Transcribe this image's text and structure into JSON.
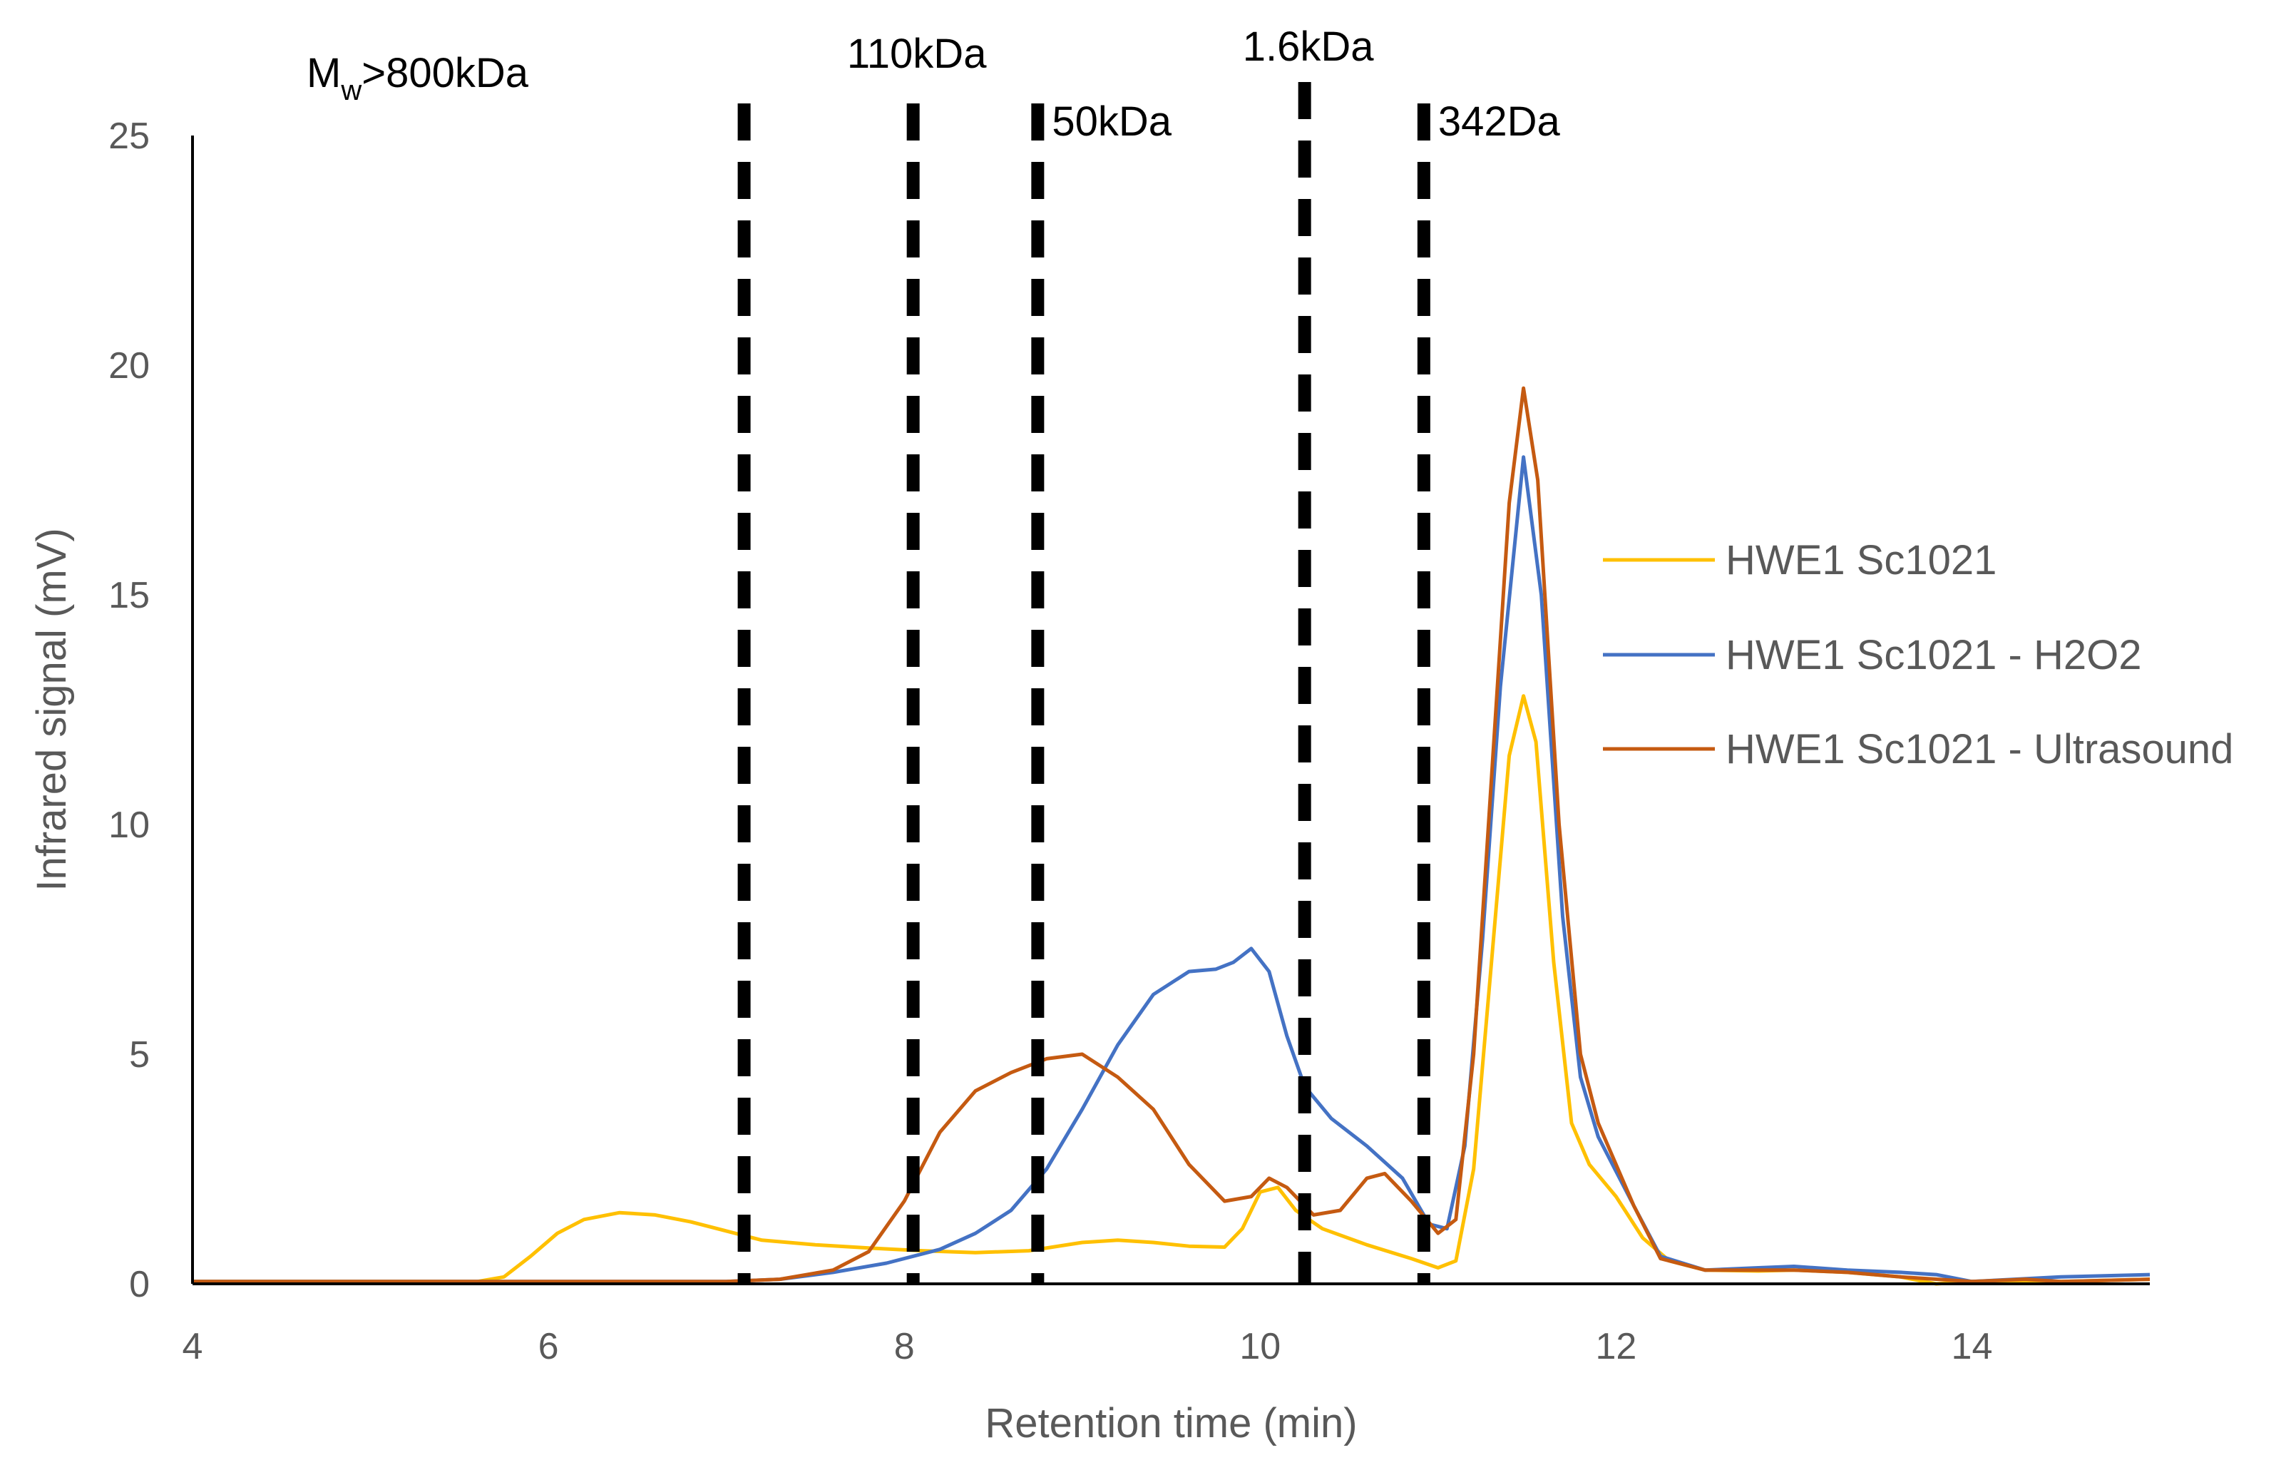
{
  "chart_data": {
    "type": "line",
    "title": "",
    "xlabel": "Retention time (min)",
    "ylabel": "Infrared signal (mV)",
    "xlim": [
      4,
      15
    ],
    "ylim": [
      0,
      25
    ],
    "xticks": [
      "4",
      "6",
      "8",
      "10",
      "12",
      "14"
    ],
    "yticks": [
      "0",
      "5",
      "10",
      "15",
      "20",
      "25"
    ],
    "grid": false,
    "legend_position": "right",
    "markers": [
      {
        "x": 7.1,
        "label": "",
        "label_x": 6.2
      },
      {
        "x": 8.05,
        "label": "110kDa"
      },
      {
        "x": 8.75,
        "label": "50kDa"
      },
      {
        "x": 10.25,
        "label": "1.6kDa"
      },
      {
        "x": 10.92,
        "label": "342Da"
      }
    ],
    "mw_label": {
      "main": "M",
      "sub": "w",
      "rest": ">800kDa"
    },
    "series": [
      {
        "name": "HWE1 Sc1021",
        "color": "#FFC000",
        "points": [
          [
            4,
            0.05
          ],
          [
            5,
            0.05
          ],
          [
            5.6,
            0.05
          ],
          [
            5.75,
            0.15
          ],
          [
            5.9,
            0.6
          ],
          [
            6.05,
            1.1
          ],
          [
            6.2,
            1.4
          ],
          [
            6.4,
            1.55
          ],
          [
            6.6,
            1.5
          ],
          [
            6.8,
            1.35
          ],
          [
            7.0,
            1.15
          ],
          [
            7.2,
            0.95
          ],
          [
            7.5,
            0.85
          ],
          [
            7.8,
            0.78
          ],
          [
            8.1,
            0.72
          ],
          [
            8.4,
            0.68
          ],
          [
            8.7,
            0.72
          ],
          [
            9.0,
            0.9
          ],
          [
            9.2,
            0.95
          ],
          [
            9.4,
            0.9
          ],
          [
            9.6,
            0.82
          ],
          [
            9.8,
            0.8
          ],
          [
            9.9,
            1.2
          ],
          [
            10.0,
            2.0
          ],
          [
            10.1,
            2.1
          ],
          [
            10.2,
            1.6
          ],
          [
            10.35,
            1.2
          ],
          [
            10.6,
            0.85
          ],
          [
            10.85,
            0.55
          ],
          [
            11.0,
            0.35
          ],
          [
            11.1,
            0.5
          ],
          [
            11.2,
            2.5
          ],
          [
            11.3,
            7.0
          ],
          [
            11.4,
            11.5
          ],
          [
            11.48,
            12.8
          ],
          [
            11.55,
            11.8
          ],
          [
            11.65,
            7.0
          ],
          [
            11.75,
            3.5
          ],
          [
            11.85,
            2.6
          ],
          [
            12.0,
            1.9
          ],
          [
            12.15,
            1.0
          ],
          [
            12.3,
            0.5
          ],
          [
            12.5,
            0.3
          ],
          [
            12.8,
            0.28
          ],
          [
            13.0,
            0.3
          ],
          [
            13.3,
            0.25
          ],
          [
            13.6,
            0.15
          ],
          [
            13.8,
            0.0
          ],
          [
            14.0,
            0.05
          ],
          [
            14.5,
            0.05
          ],
          [
            15,
            0.1
          ]
        ]
      },
      {
        "name": "HWE1 Sc1021 - H2O2",
        "color": "#4472C4",
        "points": [
          [
            4,
            0.05
          ],
          [
            6,
            0.05
          ],
          [
            7,
            0.05
          ],
          [
            7.3,
            0.1
          ],
          [
            7.6,
            0.25
          ],
          [
            7.9,
            0.45
          ],
          [
            8.2,
            0.75
          ],
          [
            8.4,
            1.1
          ],
          [
            8.6,
            1.6
          ],
          [
            8.8,
            2.5
          ],
          [
            9.0,
            3.8
          ],
          [
            9.2,
            5.2
          ],
          [
            9.4,
            6.3
          ],
          [
            9.6,
            6.8
          ],
          [
            9.75,
            6.85
          ],
          [
            9.85,
            7.0
          ],
          [
            9.95,
            7.3
          ],
          [
            10.05,
            6.8
          ],
          [
            10.15,
            5.4
          ],
          [
            10.25,
            4.3
          ],
          [
            10.4,
            3.6
          ],
          [
            10.6,
            3.0
          ],
          [
            10.8,
            2.3
          ],
          [
            10.95,
            1.3
          ],
          [
            11.05,
            1.2
          ],
          [
            11.15,
            3.0
          ],
          [
            11.25,
            7.5
          ],
          [
            11.35,
            13.0
          ],
          [
            11.48,
            18.0
          ],
          [
            11.58,
            15.0
          ],
          [
            11.7,
            8.0
          ],
          [
            11.8,
            4.5
          ],
          [
            11.9,
            3.2
          ],
          [
            12.1,
            1.7
          ],
          [
            12.25,
            0.6
          ],
          [
            12.5,
            0.3
          ],
          [
            12.8,
            0.35
          ],
          [
            13.0,
            0.38
          ],
          [
            13.3,
            0.3
          ],
          [
            13.6,
            0.25
          ],
          [
            13.8,
            0.2
          ],
          [
            14.0,
            0.05
          ],
          [
            14.5,
            0.15
          ],
          [
            15,
            0.2
          ]
        ]
      },
      {
        "name": "HWE1 Sc1021 - Ultrasound",
        "color": "#C55A11",
        "points": [
          [
            4,
            0.05
          ],
          [
            6,
            0.05
          ],
          [
            7,
            0.05
          ],
          [
            7.3,
            0.1
          ],
          [
            7.6,
            0.3
          ],
          [
            7.8,
            0.7
          ],
          [
            8.0,
            1.8
          ],
          [
            8.2,
            3.3
          ],
          [
            8.4,
            4.2
          ],
          [
            8.6,
            4.6
          ],
          [
            8.8,
            4.9
          ],
          [
            9.0,
            5.0
          ],
          [
            9.2,
            4.5
          ],
          [
            9.4,
            3.8
          ],
          [
            9.6,
            2.6
          ],
          [
            9.8,
            1.8
          ],
          [
            9.95,
            1.9
          ],
          [
            10.05,
            2.3
          ],
          [
            10.15,
            2.1
          ],
          [
            10.3,
            1.5
          ],
          [
            10.45,
            1.6
          ],
          [
            10.6,
            2.3
          ],
          [
            10.7,
            2.4
          ],
          [
            10.85,
            1.8
          ],
          [
            11.0,
            1.1
          ],
          [
            11.1,
            1.4
          ],
          [
            11.2,
            5.0
          ],
          [
            11.3,
            11.0
          ],
          [
            11.4,
            17.0
          ],
          [
            11.48,
            19.5
          ],
          [
            11.56,
            17.5
          ],
          [
            11.68,
            10.0
          ],
          [
            11.8,
            5.0
          ],
          [
            11.9,
            3.5
          ],
          [
            12.1,
            1.7
          ],
          [
            12.25,
            0.55
          ],
          [
            12.5,
            0.3
          ],
          [
            12.8,
            0.3
          ],
          [
            13.0,
            0.3
          ],
          [
            13.3,
            0.25
          ],
          [
            13.6,
            0.15
          ],
          [
            14.0,
            0.05
          ],
          [
            14.3,
            0.1
          ],
          [
            14.5,
            0.05
          ],
          [
            15,
            0.1
          ]
        ]
      }
    ]
  }
}
